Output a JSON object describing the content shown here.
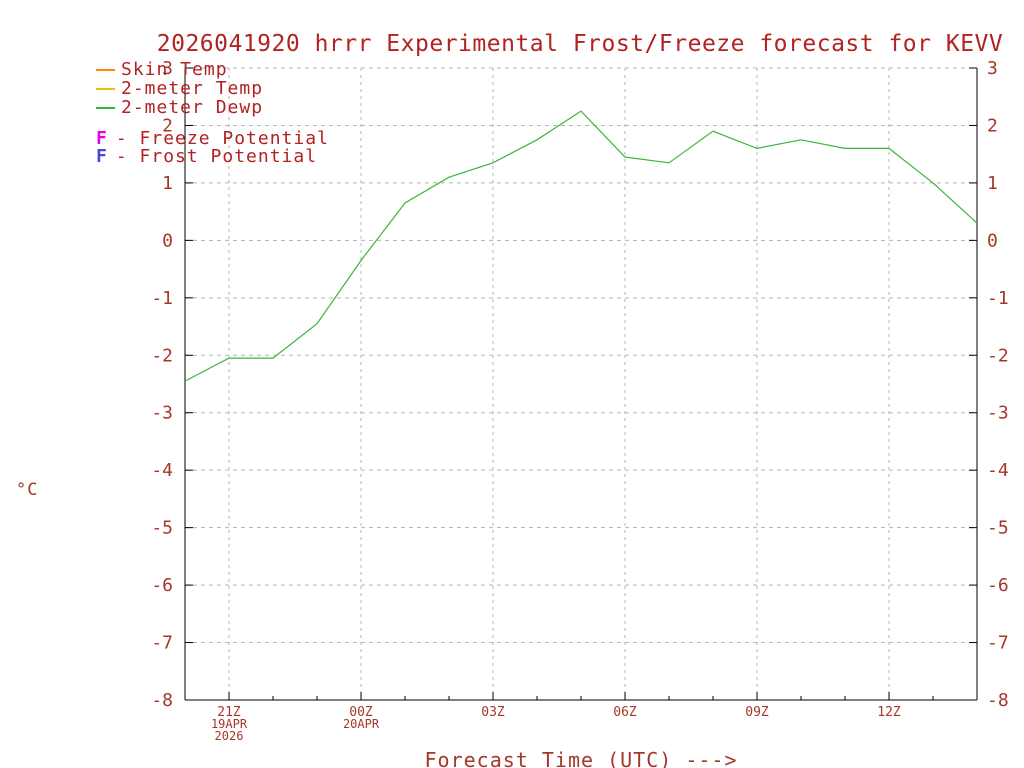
{
  "title": "2026041920 hrrr Experimental Frost/Freeze forecast for KEVV",
  "colors": {
    "title_text": "#b22222",
    "axis_text": "#a5372a",
    "grid": "#b4b4b4",
    "axis_line": "#000000",
    "skin_temp": "#ff8c00",
    "two_meter_temp": "#e3c400",
    "two_meter_dewp": "#3cb43c",
    "freeze_potential": "#e800e8",
    "frost_potential": "#4747dd"
  },
  "legend": {
    "series": [
      {
        "label": "Skin Temp",
        "color": "#ff8c00"
      },
      {
        "label": "2-meter Temp",
        "color": "#e3c400"
      },
      {
        "label": "2-meter Dewp",
        "color": "#3cb43c"
      }
    ],
    "flags": [
      {
        "symbol": "F",
        "label": "- Freeze Potential",
        "color": "#e800e8"
      },
      {
        "symbol": "F",
        "label": "- Frost Potential",
        "color": "#4747dd"
      }
    ]
  },
  "y_axis": {
    "label": "°C",
    "min": -8,
    "max": 3,
    "ticks": [
      3,
      2,
      1,
      0,
      -1,
      -2,
      -3,
      -4,
      -5,
      -6,
      -7,
      -8
    ]
  },
  "x_axis": {
    "label": "Forecast Time (UTC) --->",
    "ticks": [
      {
        "index": 1,
        "label": "21Z",
        "sub": [
          "19APR",
          "2026"
        ]
      },
      {
        "index": 4,
        "label": "00Z",
        "sub": [
          "20APR"
        ]
      },
      {
        "index": 7,
        "label": "03Z",
        "sub": []
      },
      {
        "index": 10,
        "label": "06Z",
        "sub": []
      },
      {
        "index": 13,
        "label": "09Z",
        "sub": []
      },
      {
        "index": 16,
        "label": "12Z",
        "sub": []
      }
    ]
  },
  "chart_data": {
    "type": "line",
    "title": "2026041920 hrrr Experimental Frost/Freeze forecast for KEVV",
    "xlabel": "Forecast Time (UTC) --->",
    "ylabel": "°C",
    "ylim": [
      -8,
      3
    ],
    "grid": true,
    "legend_position": "top-left",
    "x_hours_utc": [
      "20Z",
      "21Z",
      "22Z",
      "23Z",
      "00Z",
      "01Z",
      "02Z",
      "03Z",
      "04Z",
      "05Z",
      "06Z",
      "07Z",
      "08Z",
      "09Z",
      "10Z",
      "11Z",
      "12Z",
      "13Z",
      "14Z"
    ],
    "x_major_tick_labels": [
      "21Z",
      "00Z",
      "03Z",
      "06Z",
      "09Z",
      "12Z"
    ],
    "series": [
      {
        "name": "Skin Temp",
        "color": "#ff8c00",
        "values": [],
        "visible_in_plot": false
      },
      {
        "name": "2-meter Temp",
        "color": "#e3c400",
        "values": [],
        "visible_in_plot": false
      },
      {
        "name": "2-meter Dewp",
        "color": "#3cb43c",
        "visible_in_plot": true,
        "values": [
          -2.45,
          -2.05,
          -2.05,
          -1.45,
          -0.35,
          0.65,
          1.1,
          1.35,
          1.75,
          2.25,
          1.45,
          1.35,
          1.9,
          1.6,
          1.75,
          1.6,
          1.6,
          1.0,
          0.3
        ]
      }
    ]
  }
}
